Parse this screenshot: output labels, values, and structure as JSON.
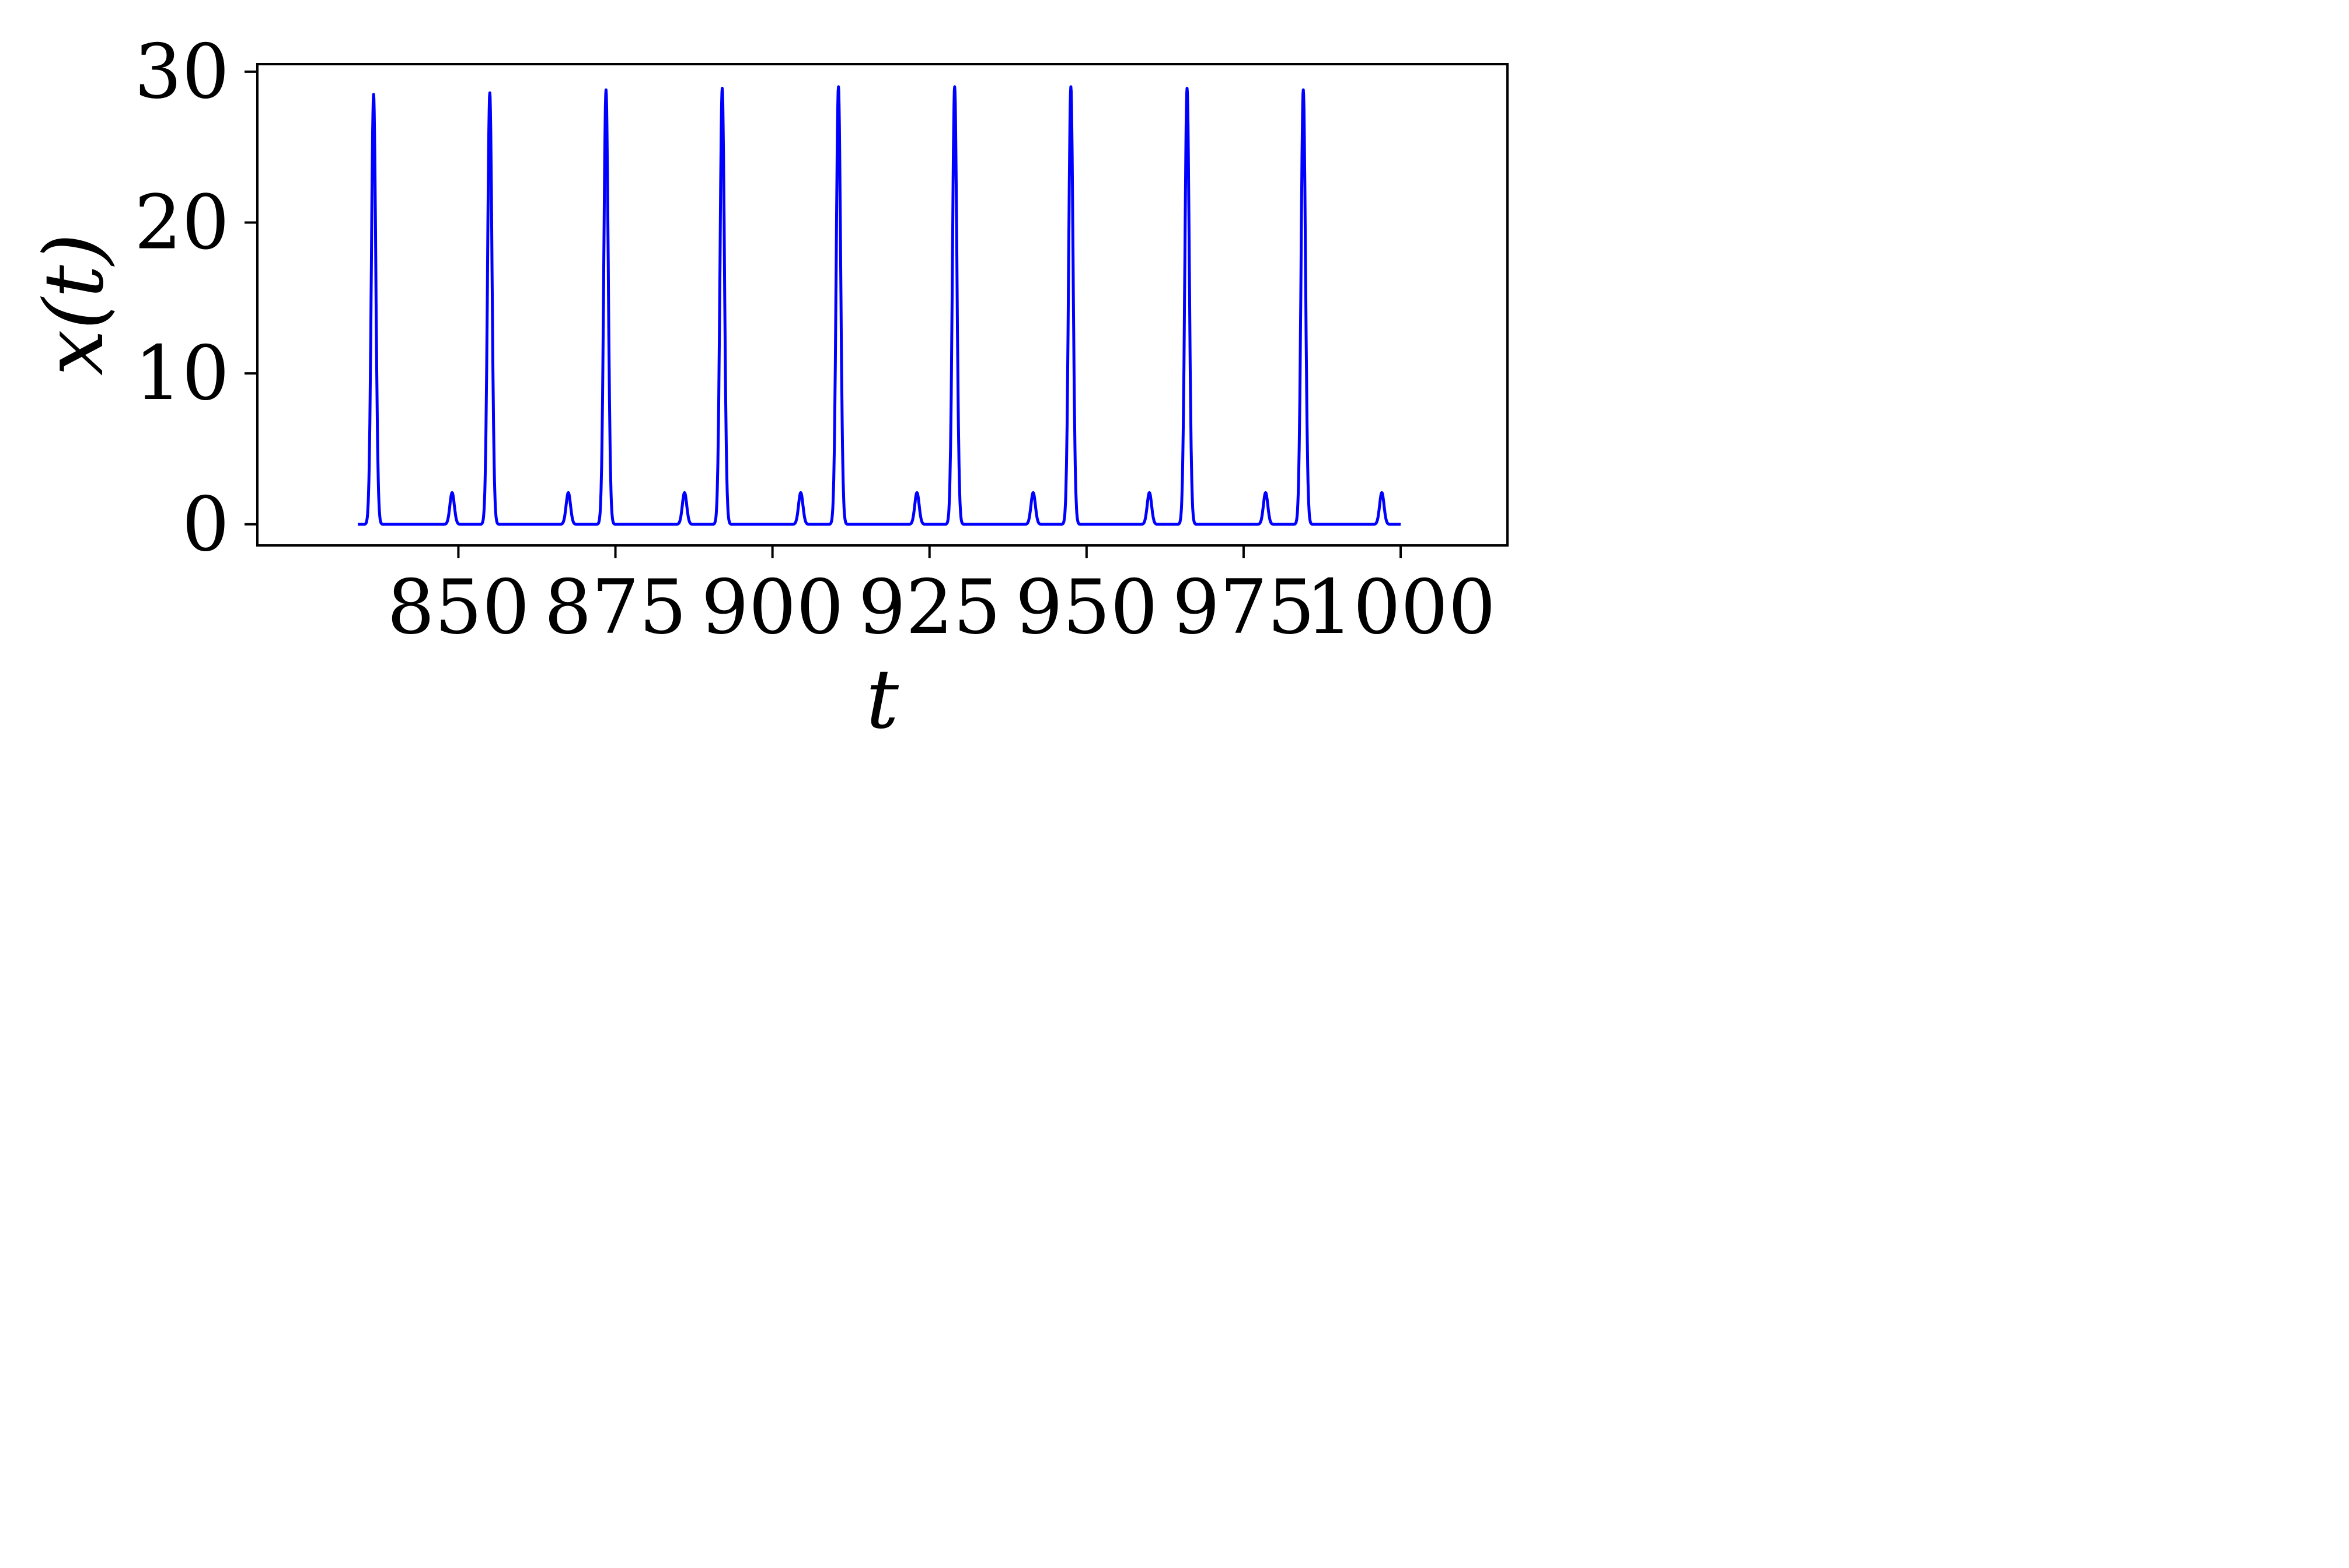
{
  "chart_data": {
    "type": "line",
    "title": "",
    "xlabel": "t",
    "ylabel": "x(t)",
    "xlim": [
      818,
      1017
    ],
    "ylim": [
      -1.4,
      30.5
    ],
    "x_ticks": [
      850,
      875,
      900,
      925,
      950,
      975,
      1000
    ],
    "x_tick_labels": [
      "850",
      "875",
      "900",
      "925",
      "950",
      "975",
      "1000"
    ],
    "y_ticks": [
      0,
      10,
      20,
      30
    ],
    "y_tick_labels": [
      "0",
      "10",
      "20",
      "30"
    ],
    "grid": false,
    "legend": false,
    "line_color": "#0000ff",
    "series": [
      {
        "x_start": 834,
        "x_end": 1000,
        "baseline": 0.0,
        "peaks": [
          {
            "t": 836.5,
            "x": 28.5
          },
          {
            "t": 849.0,
            "x": 2.1
          },
          {
            "t": 855.0,
            "x": 28.6
          },
          {
            "t": 867.5,
            "x": 2.1
          },
          {
            "t": 873.5,
            "x": 28.8
          },
          {
            "t": 886.0,
            "x": 2.1
          },
          {
            "t": 892.0,
            "x": 28.9
          },
          {
            "t": 904.5,
            "x": 2.1
          },
          {
            "t": 910.5,
            "x": 29.0
          },
          {
            "t": 923.0,
            "x": 2.1
          },
          {
            "t": 929.0,
            "x": 29.0
          },
          {
            "t": 941.5,
            "x": 2.1
          },
          {
            "t": 947.5,
            "x": 29.0
          },
          {
            "t": 960.0,
            "x": 2.1
          },
          {
            "t": 966.0,
            "x": 28.9
          },
          {
            "t": 978.5,
            "x": 2.1
          },
          {
            "t": 984.5,
            "x": 28.8
          },
          {
            "t": 997.0,
            "x": 2.1
          }
        ]
      }
    ]
  }
}
